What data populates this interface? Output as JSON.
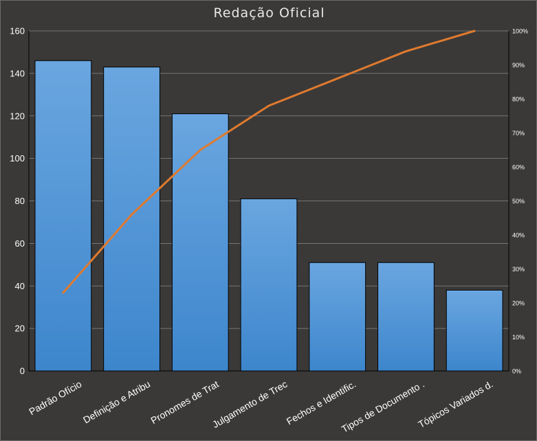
{
  "chart_data": {
    "type": "bar",
    "title": "Redação Oficial",
    "categories": [
      "Padrão Ofício",
      "Definição e Atribu",
      "Pronomes  de Trat",
      "Julgamento de Trec",
      "Fechos e Identific.",
      "Tipos de Documento  .",
      "Tópicos Variados d."
    ],
    "series": [
      {
        "type": "bar",
        "values": [
          146,
          143,
          121,
          81,
          51,
          51,
          38
        ],
        "color": "#4a90d9"
      },
      {
        "type": "line",
        "axis": "right",
        "values": [
          23,
          46,
          65,
          78,
          86,
          94,
          100
        ],
        "color": "#e07a2e"
      }
    ],
    "ylim": [
      0,
      160
    ],
    "yticks": [
      0,
      20,
      40,
      60,
      80,
      100,
      120,
      140,
      160
    ],
    "y2lim": [
      0,
      100
    ],
    "y2ticks": [
      "0%",
      "10%",
      "20%",
      "30%",
      "40%",
      "50%",
      "60%",
      "70%",
      "80%",
      "90%",
      "100%"
    ],
    "grid": true,
    "legend": "none"
  },
  "colors": {
    "background": "#3a3938",
    "gridline": "#8a8a8a",
    "bar_top": "#6aa6e0",
    "bar_bottom": "#3d86cc",
    "line": "#e07a2e"
  }
}
